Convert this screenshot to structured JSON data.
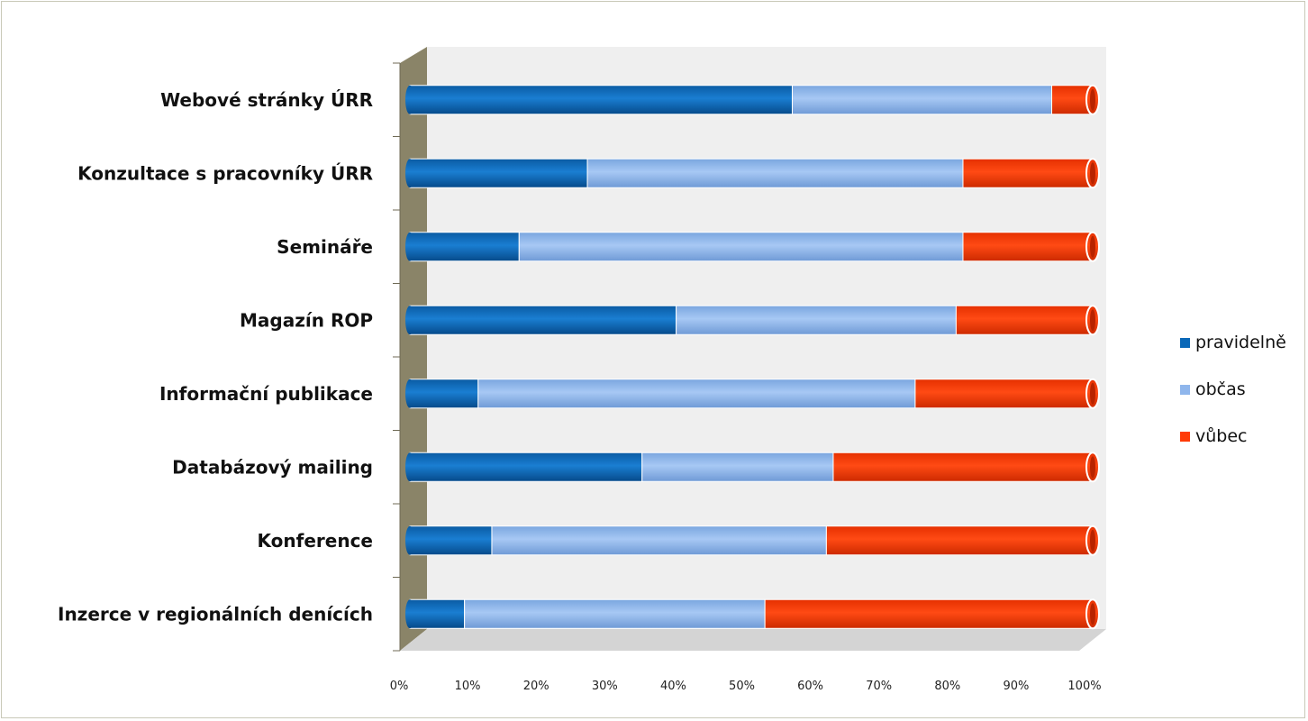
{
  "chart_data": {
    "type": "bar",
    "stacked": true,
    "normalized": true,
    "orientation": "horizontal",
    "title": "",
    "categories": [
      "Webové stránky ÚRR",
      "Konzultace s pracovníky ÚRR",
      "Semináře",
      "Magazín ROP",
      "Informační publikace",
      "Databázový mailing",
      "Konference",
      "Inzerce v regionálních denících"
    ],
    "series": [
      {
        "name": "pravidelně",
        "color": "#0a68b8",
        "values": [
          56,
          26,
          16,
          39,
          10,
          34,
          12,
          8
        ]
      },
      {
        "name": "občas",
        "color": "#8fb6ec",
        "values": [
          38,
          55,
          65,
          41,
          64,
          28,
          49,
          44
        ]
      },
      {
        "name": "vůbec",
        "color": "#ff3a06",
        "values": [
          6,
          19,
          19,
          20,
          26,
          38,
          39,
          48
        ]
      }
    ],
    "xticks": [
      "0%",
      "10%",
      "20%",
      "30%",
      "40%",
      "50%",
      "60%",
      "70%",
      "80%",
      "90%",
      "100%"
    ],
    "xlim": [
      0,
      100
    ],
    "legend_position": "right",
    "grid": false
  }
}
